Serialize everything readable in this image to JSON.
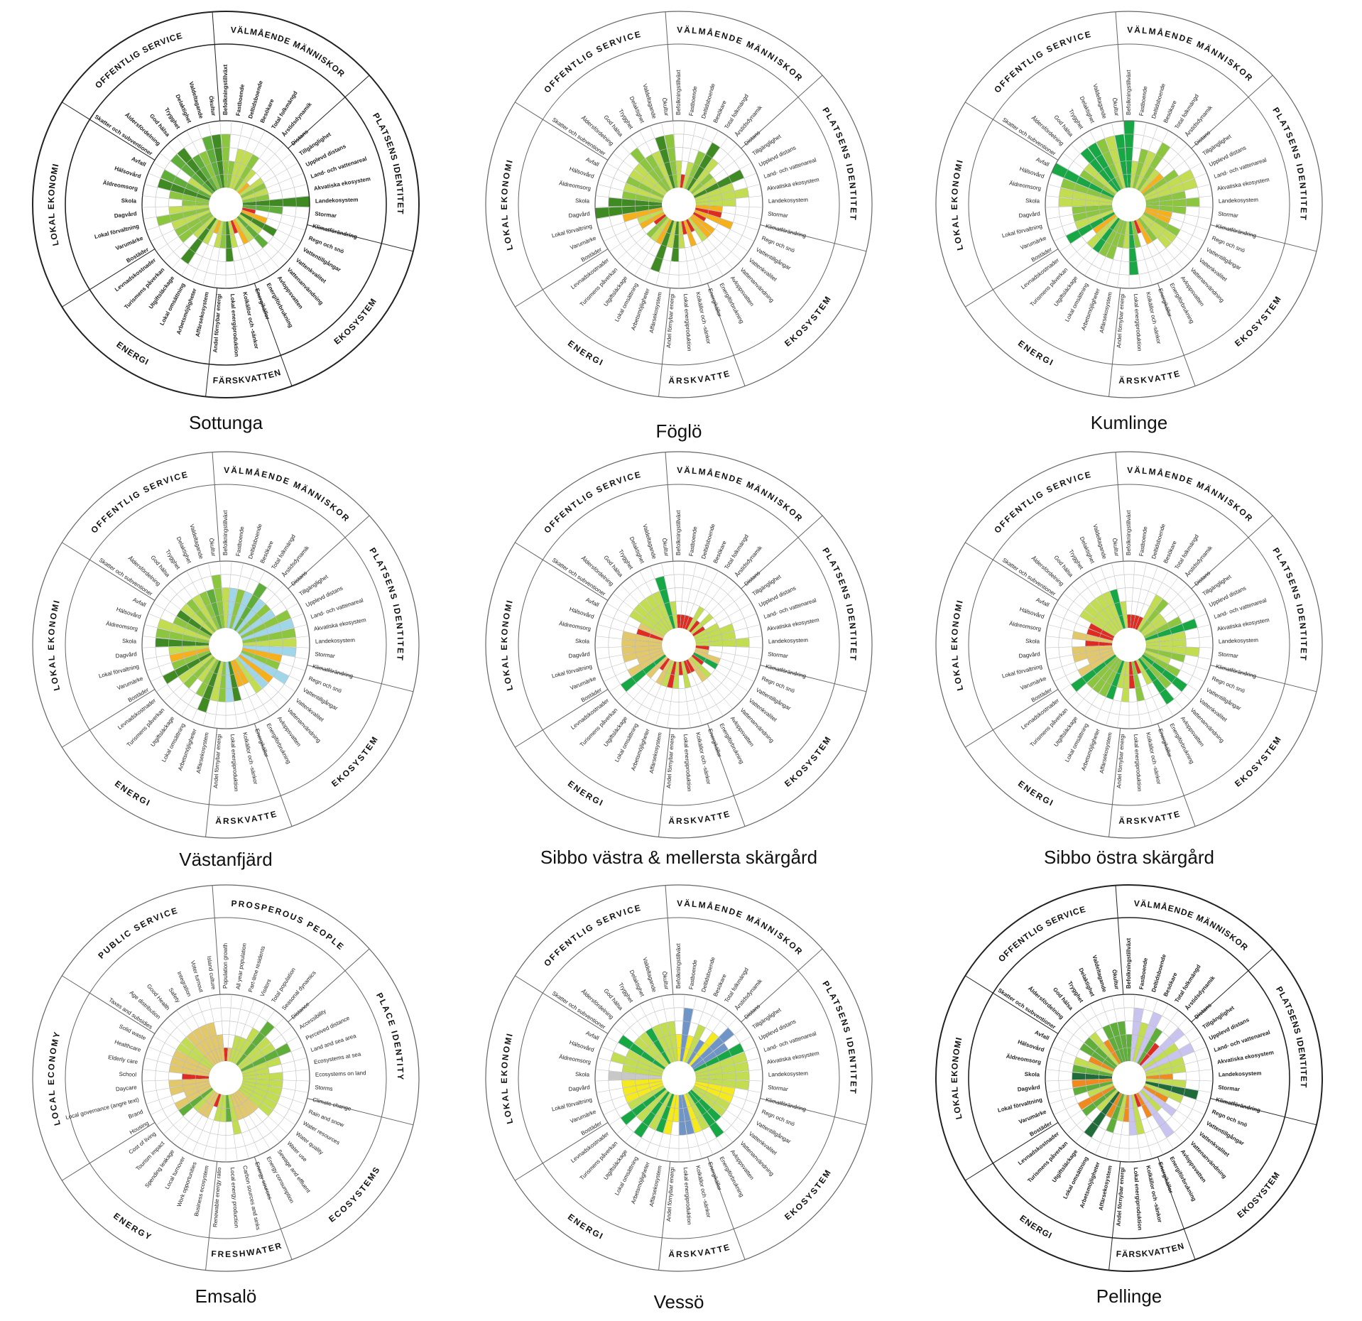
{
  "figure": {
    "panels": [
      {
        "id": "sottunga",
        "caption": "Sottunga"
      },
      {
        "id": "foglo",
        "caption": "Föglö"
      },
      {
        "id": "kumlinge",
        "caption": "Kumlinge"
      },
      {
        "id": "vastanfjard",
        "caption": "Västanfjärd"
      },
      {
        "id": "sibbo_vm",
        "caption": "Sibbo västra & mellersta skärgård"
      },
      {
        "id": "sibbo_o",
        "caption": "Sibbo östra skärgård"
      },
      {
        "id": "emsalo",
        "caption": "Emsalö"
      },
      {
        "id": "vesso",
        "caption": "Vessö"
      },
      {
        "id": "pellinge",
        "caption": "Pellinge"
      }
    ]
  },
  "sectors_sv": [
    "VÄLMÅENDE MÄNNISKOR",
    "PLATSENS IDENTITET",
    "EKOSYSTEM",
    "FÄRSKVATTEN",
    "ENERGI",
    "LOKAL EKONOMI",
    "OFFENTLIG SERVICE"
  ],
  "sectors_en": [
    "PROSPEROUS PEOPLE",
    "PLACE IDENTITY",
    "ECOSYSTEMS",
    "FRESHWATER",
    "ENERGY",
    "LOCAL ECONOMY",
    "PUBLIC SERVICE"
  ],
  "labels_sv": [
    "Befolkningstillväxt",
    "Fastboende",
    "Deltidsboende",
    "Besökare",
    "Total folkmängd",
    "Årstidsdynamik",
    "Distans",
    "Tillgänglighet",
    "Upplevd distans",
    "Land- och vattenareal",
    "Akvatiska ekosystem",
    "Landekosystem",
    "Stormar",
    "Klimatförändring",
    "Regn och snö",
    "Vattentillgångar",
    "Vattenkvalitet",
    "Vattenanvändning",
    "Avloppsvatten",
    "Energiförbrukning",
    "Energikällor",
    "Kolkällor och -sänkor",
    "Lokal energiproduktion",
    "Andel förnybar energi",
    "Affärsekosystem",
    "Arbetsmöjligheter",
    "Lokal omsättning",
    "Utgiftsläckage",
    "Turismens påverkan",
    "Levnadskostnader",
    "Bostäder",
    "Varumärke",
    "Lokal förvaltning",
    "Dagvård",
    "Skola",
    "Äldreomsorg",
    "Hälsovård",
    "Avfall",
    "Skatter och subventioner",
    "Åldersfördelning",
    "God hälsa",
    "Trygghet",
    "Delaktighet",
    "Valdeltagande",
    "Ökultur"
  ],
  "labels_en": [
    "Population growth",
    "All year population",
    "Part-time residents",
    "Visitors",
    "Total population",
    "Seasonal dynamics",
    "Distance",
    "Accessibility",
    "Perceived distance",
    "Land and sea area",
    "Ecosystems at sea",
    "Ecosystems on land",
    "Storms",
    "Climate change",
    "Rain and snow",
    "Water resources",
    "Water quality",
    "Water use",
    "Sewage and effluent",
    "Energy consumption",
    "Energy sources",
    "Carbon sources and sinks",
    "Local energy production",
    "Renewable energy ratio",
    "Business ecosystem",
    "Work opportunities",
    "Local turnover",
    "Spending leakage",
    "Tourism impact",
    "Cost of living",
    "Housing",
    "Brand",
    "Local governance (angre text)",
    "Daycare",
    "School",
    "Elderly care",
    "Healthcare",
    "Solid waste",
    "Taxes and subsidies",
    "Age distribution",
    "Good Health",
    "Safety",
    "Integration",
    "Voter turnout",
    "Island culture"
  ],
  "colors": {
    "red": "#e02b20",
    "orange": "#f5b01a",
    "yellow": "#f4ea1c",
    "tan": "#e3c86a",
    "lightgreen": "#c2dd4f",
    "green": "#8cc63f",
    "midgreen": "#5fae3a",
    "darkgreen": "#3f8a22",
    "brightgreen": "#17a845",
    "sky": "#9fd6ea",
    "steel": "#6f95c7",
    "lavender": "#c9c4ef",
    "pinegreen": "#1f6b3a",
    "orangepell": "#f08a1c",
    "greypale": "#c8c8c8"
  },
  "chart_data": [
    {
      "type": "radial",
      "title": "Sottunga",
      "labels": "sv",
      "scale": [
        0,
        5
      ],
      "values": [
        4,
        2,
        3,
        3,
        3,
        2,
        1,
        2,
        2,
        2,
        2,
        5,
        3,
        1,
        2,
        3,
        2,
        3,
        2,
        2,
        1,
        2,
        3,
        2,
        2,
        1,
        2,
        4,
        2,
        3,
        3,
        3,
        4,
        3,
        2,
        3,
        4,
        4,
        2,
        4,
        4,
        3,
        3,
        4,
        4
      ],
      "colors": [
        "green",
        "green",
        "lightgreen",
        "lightgreen",
        "green",
        "lightgreen",
        "orange",
        "lightgreen",
        "green",
        "lightgreen",
        "green",
        "darkgreen",
        "midgreen",
        "red",
        "orange",
        "darkgreen",
        "lightgreen",
        "midgreen",
        "lightgreen",
        "orange",
        "red",
        "lightgreen",
        "darkgreen",
        "green",
        "lightgreen",
        "orange",
        "lightgreen",
        "darkgreen",
        "lightgreen",
        "green",
        "green",
        "lightgreen",
        "green",
        "lightgreen",
        "green",
        "green",
        "darkgreen",
        "midgreen",
        "lightgreen",
        "midgreen",
        "darkgreen",
        "midgreen",
        "green",
        "midgreen",
        "darkgreen"
      ]
    },
    {
      "type": "radial",
      "title": "Föglö",
      "labels": "sv",
      "scale": [
        0,
        5
      ],
      "values": [
        2,
        1,
        2,
        3,
        4,
        3,
        2,
        2,
        4,
        3,
        4,
        3,
        2,
        2,
        3,
        1,
        2,
        2,
        2,
        1,
        2,
        1,
        2,
        3,
        2,
        4,
        2,
        2,
        2,
        1,
        2,
        2,
        3,
        5,
        4,
        3,
        3,
        3,
        3,
        3,
        4,
        3,
        3,
        4,
        4
      ],
      "colors": [
        "lightgreen",
        "red",
        "lightgreen",
        "green",
        "darkgreen",
        "lightgreen",
        "green",
        "lightgreen",
        "darkgreen",
        "lightgreen",
        "lightgreen",
        "lightgreen",
        "orange",
        "red",
        "orange",
        "red",
        "orange",
        "orange",
        "lightgreen",
        "red",
        "orange",
        "red",
        "lightgreen",
        "darkgreen",
        "lightgreen",
        "darkgreen",
        "orange",
        "lightgreen",
        "green",
        "red",
        "orange",
        "lightgreen",
        "orange",
        "darkgreen",
        "darkgreen",
        "green",
        "lightgreen",
        "green",
        "lightgreen",
        "lightgreen",
        "green",
        "green",
        "lightgreen",
        "darkgreen",
        "green"
      ]
    },
    {
      "type": "radial",
      "title": "Kumlinge",
      "labels": "sv",
      "scale": [
        0,
        5
      ],
      "values": [
        5,
        2,
        3,
        3,
        4,
        2,
        2,
        3,
        4,
        4,
        3,
        4,
        3,
        2,
        2,
        3,
        3,
        3,
        2,
        2,
        1,
        2,
        4,
        2,
        2,
        3,
        3,
        3,
        3,
        2,
        4,
        3,
        3,
        3,
        4,
        4,
        4,
        5,
        3,
        3,
        4,
        4,
        4,
        4,
        4
      ],
      "colors": [
        "brightgreen",
        "lightgreen",
        "green",
        "lightgreen",
        "green",
        "lightgreen",
        "orange",
        "green",
        "lightgreen",
        "lightgreen",
        "green",
        "green",
        "green",
        "orange",
        "orange",
        "green",
        "lightgreen",
        "lightgreen",
        "green",
        "orange",
        "red",
        "green",
        "brightgreen",
        "lightgreen",
        "green",
        "green",
        "green",
        "brightgreen",
        "lightgreen",
        "orange",
        "brightgreen",
        "lightgreen",
        "green",
        "green",
        "lightgreen",
        "lightgreen",
        "green",
        "brightgreen",
        "green",
        "lightgreen",
        "brightgreen",
        "brightgreen",
        "green",
        "lightgreen",
        "brightgreen"
      ]
    },
    {
      "type": "radial",
      "title": "Västanfjärd",
      "labels": "sv",
      "scale": [
        0,
        5
      ],
      "values": [
        3,
        3,
        3,
        3,
        4,
        3,
        3,
        3,
        4,
        4,
        4,
        4,
        4,
        3,
        3,
        4,
        3,
        3,
        3,
        2,
        2,
        3,
        3,
        3,
        3,
        4,
        3,
        2,
        3,
        3,
        4,
        3,
        3,
        3,
        4,
        4,
        4,
        3,
        3,
        3,
        3,
        3,
        3,
        3,
        4
      ],
      "colors": [
        "lightgreen",
        "sky",
        "green",
        "sky",
        "midgreen",
        "sky",
        "green",
        "sky",
        "green",
        "sky",
        "green",
        "lightgreen",
        "sky",
        "orange",
        "green",
        "sky",
        "orange",
        "sky",
        "lightgreen",
        "orange",
        "orange",
        "darkgreen",
        "sky",
        "green",
        "lightgreen",
        "darkgreen",
        "green",
        "lightgreen",
        "green",
        "lightgreen",
        "darkgreen",
        "green",
        "orange",
        "lightgreen",
        "darkgreen",
        "green",
        "lightgreen",
        "green",
        "darkgreen",
        "lightgreen",
        "green",
        "lightgreen",
        "green",
        "midgreen",
        "green"
      ]
    },
    {
      "type": "radial",
      "title": "Sibbo västra & mellersta skärgård",
      "labels": "sv",
      "scale": [
        0,
        5
      ],
      "values": [
        1,
        1,
        1,
        1,
        2,
        1,
        2,
        1,
        2,
        3,
        3,
        4,
        1,
        1,
        2,
        2,
        1,
        2,
        2,
        1,
        1,
        2,
        1,
        2,
        2,
        2,
        2,
        1,
        2,
        4,
        3,
        2,
        3,
        3,
        3,
        3,
        2,
        2,
        3,
        3,
        3,
        3,
        3,
        4,
        2
      ],
      "colors": [
        "red",
        "red",
        "red",
        "red",
        "lightgreen",
        "red",
        "lightgreen",
        "red",
        "lightgreen",
        "lightgreen",
        "lightgreen",
        "lightgreen",
        "red",
        "tan",
        "tan",
        "brightgreen",
        "red",
        "lightgreen",
        "tan",
        "red",
        "red",
        "lightgreen",
        "red",
        "lightgreen",
        "red",
        "lightgreen",
        "tan",
        "red",
        "tan",
        "brightgreen",
        "tan",
        "tan",
        "tan",
        "tan",
        "tan",
        "tan",
        "red",
        "tan",
        "lightgreen",
        "lightgreen",
        "lightgreen",
        "lightgreen",
        "lightgreen",
        "brightgreen",
        "lightgreen"
      ]
    },
    {
      "type": "radial",
      "title": "Sibbo östra skärgård",
      "labels": "sv",
      "scale": [
        0,
        5
      ],
      "values": [
        1,
        1,
        1,
        1,
        3,
        3,
        2,
        2,
        3,
        4,
        3,
        3,
        4,
        3,
        2,
        3,
        4,
        3,
        4,
        2,
        1,
        3,
        2,
        3,
        2,
        3,
        3,
        3,
        3,
        4,
        3,
        2,
        3,
        3,
        2,
        3,
        2,
        2,
        3,
        3,
        3,
        3,
        3,
        3,
        2
      ],
      "colors": [
        "red",
        "red",
        "red",
        "red",
        "lightgreen",
        "green",
        "lightgreen",
        "lightgreen",
        "green",
        "brightgreen",
        "lightgreen",
        "lightgreen",
        "lightgreen",
        "green",
        "lightgreen",
        "green",
        "brightgreen",
        "green",
        "brightgreen",
        "lightgreen",
        "red",
        "green",
        "red",
        "lightgreen",
        "lightgreen",
        "brightgreen",
        "green",
        "green",
        "green",
        "brightgreen",
        "tan",
        "tan",
        "tan",
        "tan",
        "red",
        "tan",
        "red",
        "red",
        "lightgreen",
        "lightgreen",
        "lightgreen",
        "lightgreen",
        "lightgreen",
        "brightgreen",
        "lightgreen"
      ]
    },
    {
      "type": "radial",
      "title": "Emsalö",
      "labels": "en",
      "scale": [
        0,
        5
      ],
      "values": [
        1,
        1,
        2,
        2,
        3,
        4,
        3,
        3,
        4,
        3,
        2,
        3,
        3,
        3,
        3,
        3,
        3,
        2,
        2,
        2,
        2,
        3,
        2,
        2,
        2,
        1,
        2,
        2,
        2,
        3,
        3,
        2,
        3,
        3,
        2,
        3,
        3,
        3,
        3,
        3,
        3,
        3,
        3,
        3,
        2
      ],
      "colors": [
        "red",
        "tan",
        "lightgreen",
        "lightgreen",
        "lightgreen",
        "midgreen",
        "lightgreen",
        "lightgreen",
        "midgreen",
        "lightgreen",
        "lightgreen",
        "lightgreen",
        "lightgreen",
        "lightgreen",
        "lightgreen",
        "lightgreen",
        "lightgreen",
        "tan",
        "tan",
        "tan",
        "tan",
        "lightgreen",
        "midgreen",
        "lightgreen",
        "lightgreen",
        "red",
        "tan",
        "tan",
        "lightgreen",
        "midgreen",
        "tan",
        "tan",
        "tan",
        "tan",
        "red",
        "tan",
        "tan",
        "tan",
        "lightgreen",
        "lightgreen",
        "tan",
        "tan",
        "tan",
        "tan",
        "tan"
      ]
    },
    {
      "type": "radial",
      "title": "Vessö",
      "labels": "sv",
      "scale": [
        0,
        5
      ],
      "values": [
        2,
        4,
        2,
        3,
        2,
        3,
        4,
        3,
        4,
        4,
        4,
        4,
        4,
        3,
        3,
        3,
        3,
        3,
        4,
        3,
        3,
        3,
        3,
        2,
        3,
        3,
        3,
        4,
        3,
        4,
        3,
        3,
        3,
        3,
        4,
        3,
        4,
        3,
        4,
        3,
        3,
        3,
        3,
        3,
        3
      ],
      "colors": [
        "yellow",
        "steel",
        "yellow",
        "lightgreen",
        "steel",
        "yellow",
        "steel",
        "steel",
        "brightgreen",
        "lightgreen",
        "lightgreen",
        "lightgreen",
        "lightgreen",
        "yellow",
        "yellow",
        "lightgreen",
        "lightgreen",
        "brightgreen",
        "brightgreen",
        "lightgreen",
        "yellow",
        "steel",
        "steel",
        "yellow",
        "yellow",
        "brightgreen",
        "lightgreen",
        "brightgreen",
        "lightgreen",
        "brightgreen",
        "lightgreen",
        "yellow",
        "yellow",
        "yellow",
        "greypale",
        "lightgreen",
        "lightgreen",
        "lightgreen",
        "brightgreen",
        "lightgreen",
        "lightgreen",
        "brightgreen",
        "lightgreen",
        "lightgreen",
        "lightgreen"
      ]
    },
    {
      "type": "radial",
      "title": "Pellinge",
      "labels": "sv",
      "scale": [
        0,
        5
      ],
      "values": [
        2,
        4,
        3,
        4,
        3,
        2,
        4,
        3,
        4,
        3,
        3,
        2,
        3,
        4,
        3,
        2,
        3,
        2,
        4,
        2,
        1,
        3,
        3,
        2,
        2,
        3,
        2,
        4,
        2,
        3,
        3,
        2,
        3,
        3,
        3,
        3,
        3,
        2,
        3,
        3,
        3,
        2,
        3,
        3,
        3
      ],
      "colors": [
        "midgreen",
        "lavender",
        "lightgreen",
        "lavender",
        "midgreen",
        "red",
        "lavender",
        "lightgreen",
        "lavender",
        "lightgreen",
        "lightgreen",
        "orangepell",
        "lightgreen",
        "pinegreen",
        "lightgreen",
        "orangepell",
        "lavender",
        "lightgreen",
        "lavender",
        "orangepell",
        "red",
        "lightgreen",
        "lavender",
        "orangepell",
        "lightgreen",
        "midgreen",
        "orangepell",
        "pinegreen",
        "lightgreen",
        "midgreen",
        "orangepell",
        "lightgreen",
        "midgreen",
        "orangepell",
        "pinegreen",
        "midgreen",
        "lightgreen",
        "orangepell",
        "midgreen",
        "midgreen",
        "lightgreen",
        "orangepell",
        "midgreen",
        "midgreen",
        "midgreen"
      ]
    }
  ]
}
